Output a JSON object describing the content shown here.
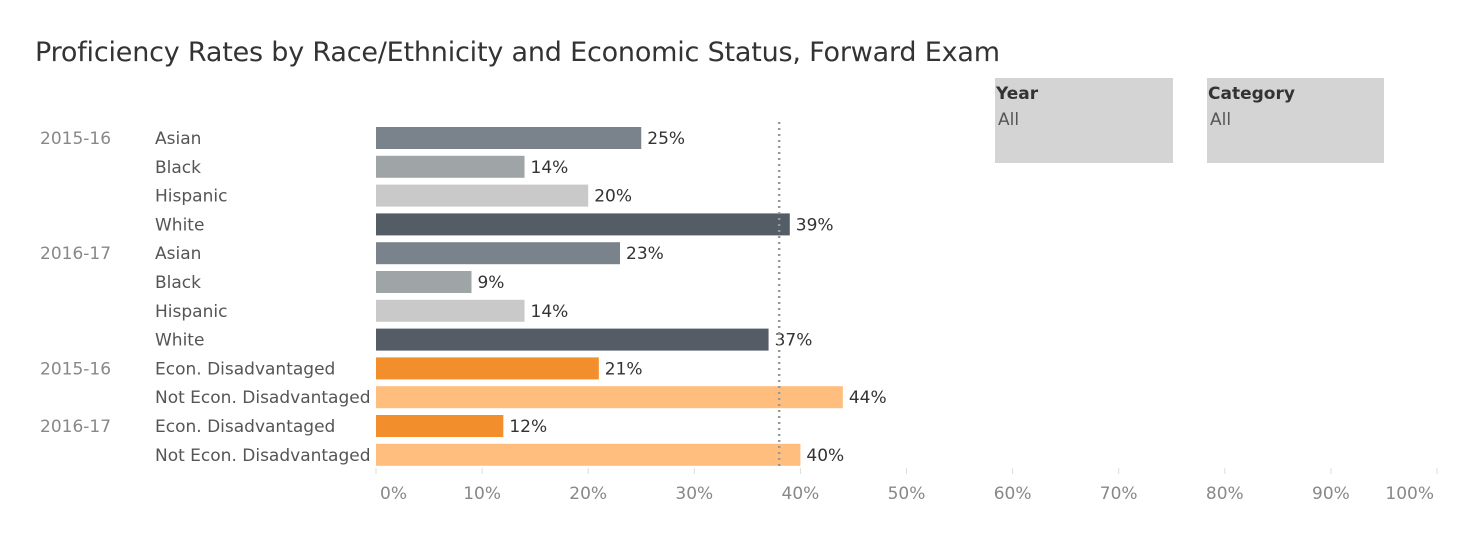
{
  "title": "Proficiency Rates by Race/Ethnicity and Economic Status, Forward Exam",
  "filters": {
    "year": {
      "label": "Year",
      "value": "All"
    },
    "category": {
      "label": "Category",
      "value": "All"
    }
  },
  "colors": {
    "Asian": "#7a838b",
    "Black": "#9fa4a7",
    "Hispanic": "#c8c9c8",
    "White": "#545d66",
    "Econ. Disadvantaged": "#f28e2b",
    "Not Econ. Disadvantaged": "#ffbd7e",
    "reference_line": "#999999",
    "axis_text": "#888888",
    "label_text": "#555555",
    "value_text": "#333333"
  },
  "chart_data": {
    "type": "bar",
    "orientation": "horizontal",
    "title": "Proficiency Rates by Race/Ethnicity and Economic Status, Forward Exam",
    "xlim": [
      0,
      100
    ],
    "x_ticks": [
      "0%",
      "10%",
      "20%",
      "30%",
      "40%",
      "50%",
      "60%",
      "70%",
      "80%",
      "90%",
      "100%"
    ],
    "reference_line_value": 38,
    "rows": [
      {
        "year": "2015-16",
        "category": "Asian",
        "value": 25,
        "label": "25%"
      },
      {
        "year": "",
        "category": "Black",
        "value": 14,
        "label": "14%"
      },
      {
        "year": "",
        "category": "Hispanic",
        "value": 20,
        "label": "20%"
      },
      {
        "year": "",
        "category": "White",
        "value": 39,
        "label": "39%"
      },
      {
        "year": "2016-17",
        "category": "Asian",
        "value": 23,
        "label": "23%"
      },
      {
        "year": "",
        "category": "Black",
        "value": 9,
        "label": "9%"
      },
      {
        "year": "",
        "category": "Hispanic",
        "value": 14,
        "label": "14%"
      },
      {
        "year": "",
        "category": "White",
        "value": 37,
        "label": "37%"
      },
      {
        "year": "2015-16",
        "category": "Econ. Disadvantaged",
        "value": 21,
        "label": "21%"
      },
      {
        "year": "",
        "category": "Not Econ. Disadvantaged",
        "value": 44,
        "label": "44%"
      },
      {
        "year": "2016-17",
        "category": "Econ. Disadvantaged",
        "value": 12,
        "label": "12%"
      },
      {
        "year": "",
        "category": "Not Econ. Disadvantaged",
        "value": 40,
        "label": "40%"
      }
    ]
  }
}
